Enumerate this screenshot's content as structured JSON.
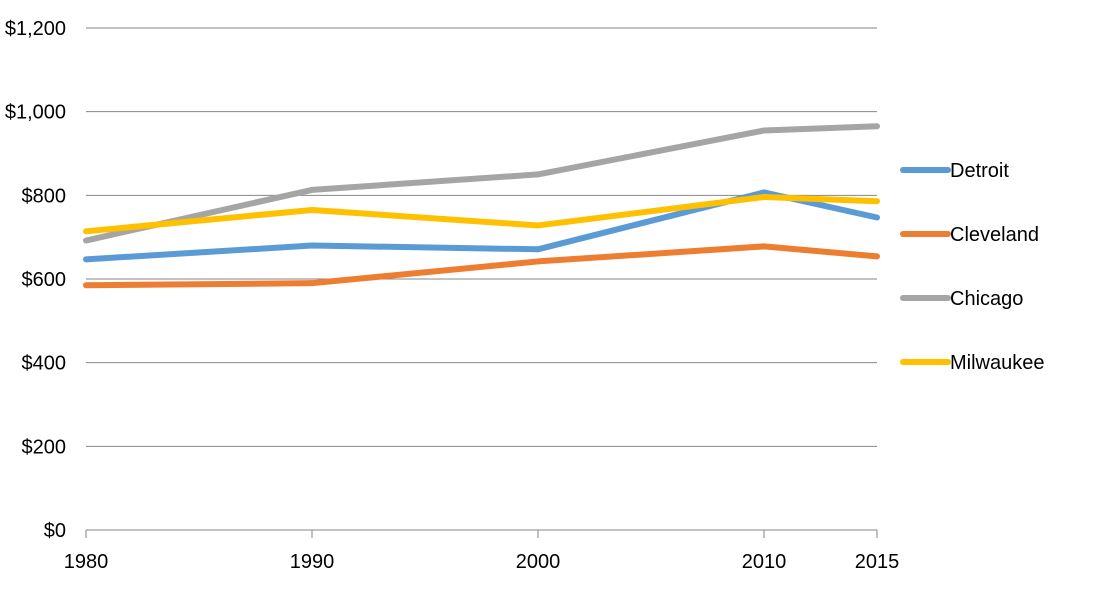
{
  "chart_data": {
    "type": "line",
    "title": "",
    "xlabel": "",
    "ylabel": "",
    "x": [
      1980,
      1990,
      2000,
      2010,
      2015
    ],
    "x_tick_labels": [
      "1980",
      "1990",
      "2000",
      "2010",
      "2015"
    ],
    "ylim": [
      0,
      1200
    ],
    "y_ticks": [
      0,
      200,
      400,
      600,
      800,
      1000,
      1200
    ],
    "y_tick_labels": [
      "$0",
      "$200",
      "$400",
      "$600",
      "$800",
      "$1,000",
      "$1,200"
    ],
    "grid": "horizontal",
    "legend_position": "right",
    "series": [
      {
        "name": "Detroit",
        "color": "#5B9BD5",
        "values": [
          647,
          680,
          671,
          807,
          747
        ]
      },
      {
        "name": "Cleveland",
        "color": "#ED7D31",
        "values": [
          585,
          590,
          642,
          678,
          654
        ]
      },
      {
        "name": "Chicago",
        "color": "#A5A5A5",
        "values": [
          692,
          813,
          850,
          955,
          965
        ]
      },
      {
        "name": "Milwaukee",
        "color": "#FFC000",
        "values": [
          714,
          765,
          728,
          796,
          786
        ]
      }
    ]
  }
}
